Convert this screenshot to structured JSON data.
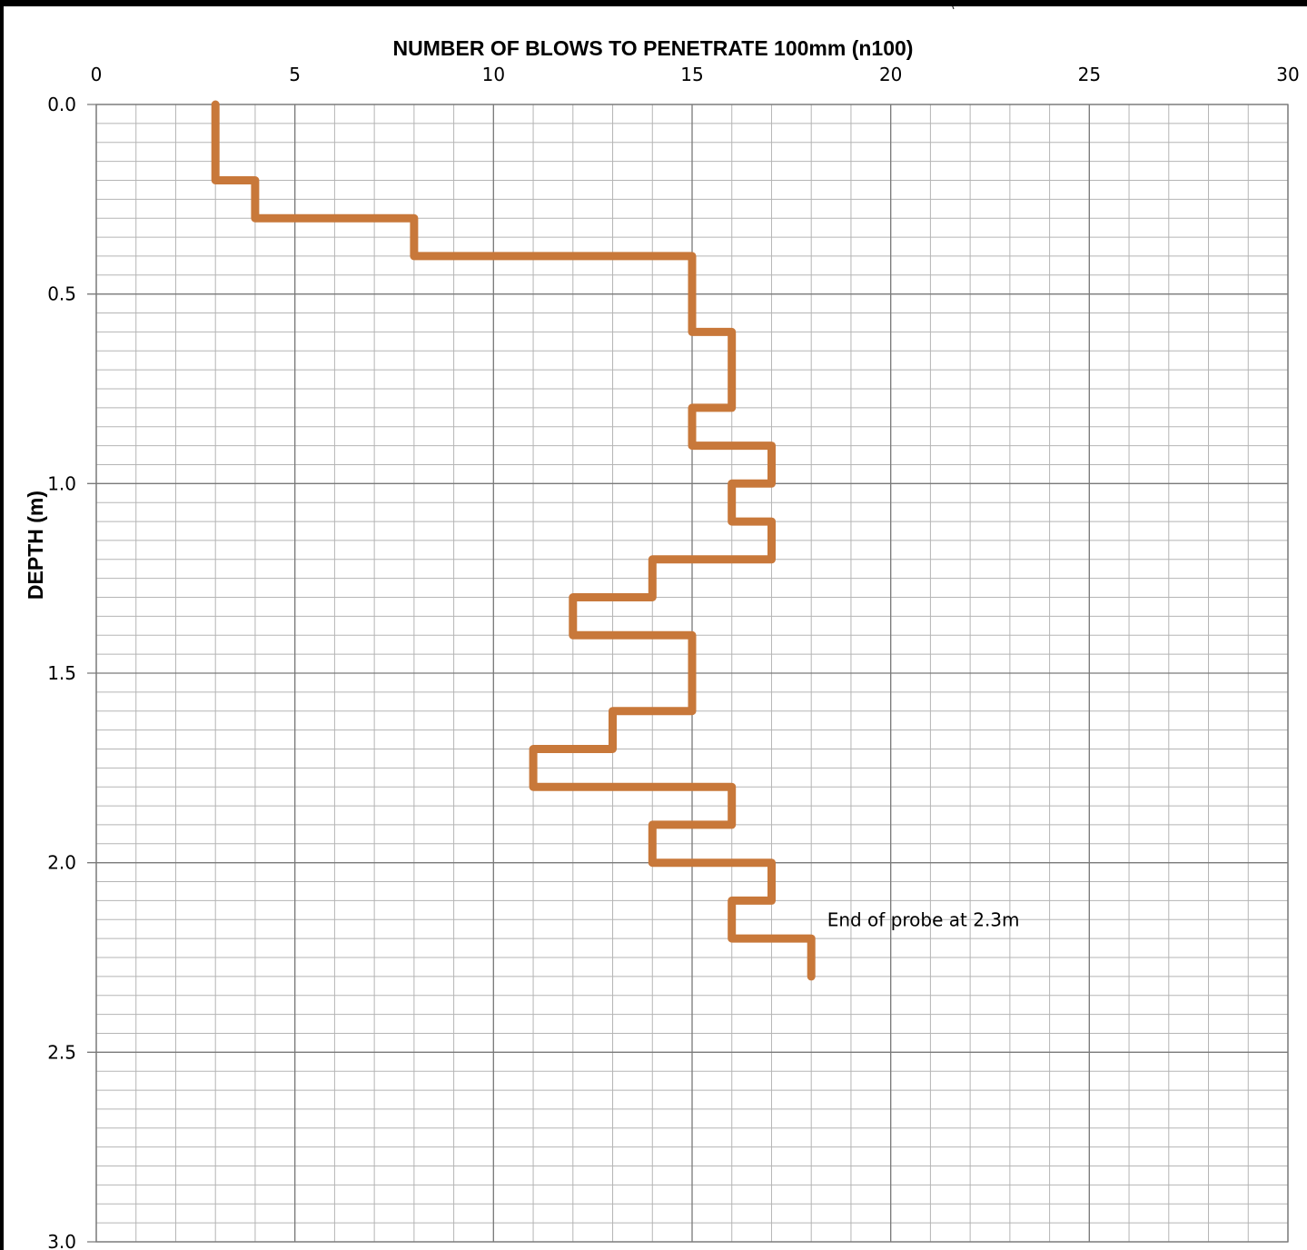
{
  "chart_data": {
    "type": "line",
    "title": "",
    "xlabel": "NUMBER OF BLOWS TO PENETRATE 100mm (n100)",
    "ylabel": "DEPTH (m)",
    "x_axis_position": "top",
    "y_axis_inverted": true,
    "xlim": [
      0,
      30
    ],
    "ylim": [
      0,
      3.0
    ],
    "x_ticks": [
      0,
      5,
      10,
      15,
      20,
      25,
      30
    ],
    "x_tick_labels": [
      "0",
      "5",
      "10",
      "15",
      "20",
      "25",
      "30"
    ],
    "y_ticks": [
      0,
      0.5,
      1.0,
      1.5,
      2.0,
      2.5,
      3.0
    ],
    "y_tick_labels": [
      "0.0",
      "0.5",
      "1.0",
      "1.5",
      "2.0",
      "2.5",
      "3.0"
    ],
    "grid": true,
    "minor_grid": {
      "x_step": 1,
      "y_step": 0.05
    },
    "legend": "none",
    "line_color": "#c8783a",
    "series": [
      {
        "style": "step",
        "points": [
          {
            "depth_from": 0.0,
            "depth_to": 0.2,
            "blows": 3
          },
          {
            "depth_from": 0.2,
            "depth_to": 0.3,
            "blows": 4
          },
          {
            "depth_from": 0.3,
            "depth_to": 0.4,
            "blows": 8
          },
          {
            "depth_from": 0.4,
            "depth_to": 0.6,
            "blows": 15
          },
          {
            "depth_from": 0.6,
            "depth_to": 0.8,
            "blows": 16
          },
          {
            "depth_from": 0.8,
            "depth_to": 0.9,
            "blows": 15
          },
          {
            "depth_from": 0.9,
            "depth_to": 1.0,
            "blows": 17
          },
          {
            "depth_from": 1.0,
            "depth_to": 1.1,
            "blows": 16
          },
          {
            "depth_from": 1.1,
            "depth_to": 1.2,
            "blows": 17
          },
          {
            "depth_from": 1.2,
            "depth_to": 1.3,
            "blows": 14
          },
          {
            "depth_from": 1.3,
            "depth_to": 1.4,
            "blows": 12
          },
          {
            "depth_from": 1.4,
            "depth_to": 1.6,
            "blows": 15
          },
          {
            "depth_from": 1.6,
            "depth_to": 1.7,
            "blows": 13
          },
          {
            "depth_from": 1.7,
            "depth_to": 1.8,
            "blows": 11
          },
          {
            "depth_from": 1.8,
            "depth_to": 1.9,
            "blows": 16
          },
          {
            "depth_from": 1.9,
            "depth_to": 2.0,
            "blows": 14
          },
          {
            "depth_from": 2.0,
            "depth_to": 2.1,
            "blows": 17
          },
          {
            "depth_from": 2.1,
            "depth_to": 2.2,
            "blows": 16
          },
          {
            "depth_from": 2.2,
            "depth_to": 2.3,
            "blows": 18
          }
        ]
      }
    ],
    "annotations": [
      {
        "text": "End of probe at 2.3m",
        "x": 18.4,
        "y": 2.15
      }
    ]
  }
}
